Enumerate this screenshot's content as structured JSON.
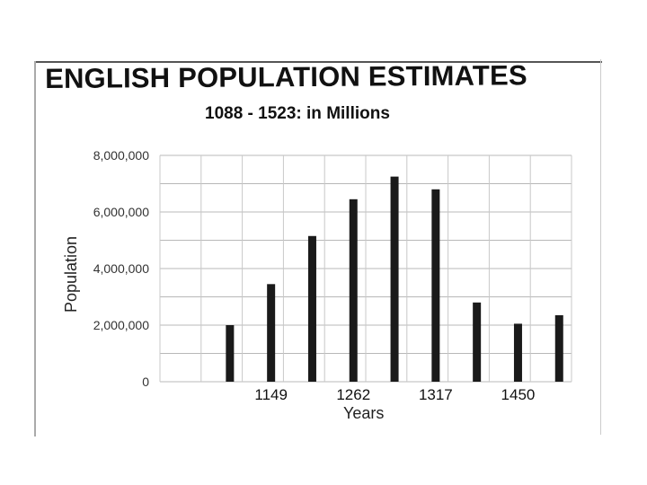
{
  "chart_data": {
    "type": "bar",
    "title": "ENGLISH POPULATION ESTIMATES",
    "subtitle": "1088 - 1523: in Millions",
    "xlabel": "Years",
    "ylabel": "Population",
    "ylim": [
      0,
      8000000
    ],
    "yticks": [
      0,
      2000000,
      4000000,
      6000000,
      8000000
    ],
    "ytick_labels": [
      "0",
      "2,000,000",
      "4,000,000",
      "6,000,000",
      "8,000,000"
    ],
    "grid": true,
    "bar_color": "#1a1a1a",
    "categories": [
      "",
      "1149",
      "",
      "1262",
      "",
      "1317",
      "",
      "1450",
      ""
    ],
    "values": [
      2000000,
      3450000,
      5150000,
      6450000,
      7250000,
      6800000,
      2800000,
      2050000,
      2350000
    ]
  }
}
